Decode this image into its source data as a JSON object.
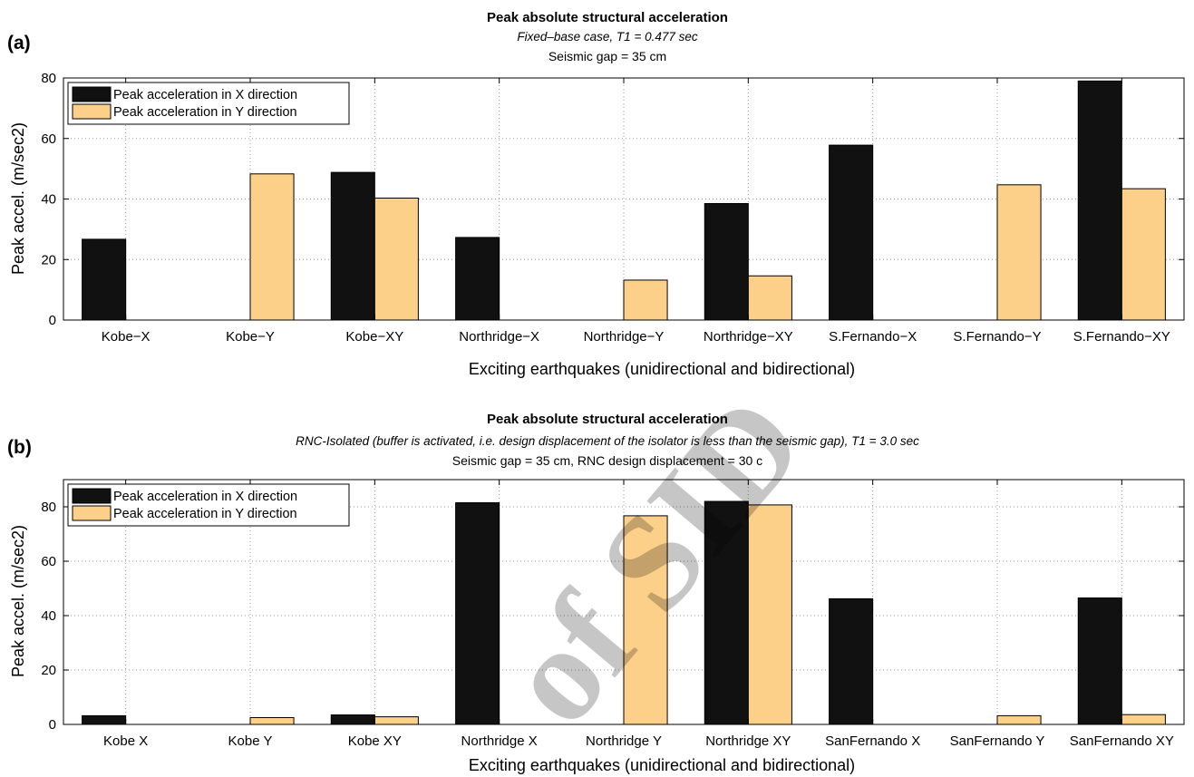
{
  "chart_data": [
    {
      "type": "bar",
      "panel_label": "(a)",
      "title": "Peak absolute structural acceleration",
      "subtitle": "Fixed–base case, T1 = 0.477 sec",
      "subtitle2": "Seismic gap = 35 cm",
      "xlabel": "Exciting earthquakes (unidirectional and bidirectional)",
      "ylabel": "Peak accel. (m/sec2)",
      "ylim": [
        0,
        80
      ],
      "yticks": [
        0,
        20,
        40,
        60,
        80
      ],
      "grid": true,
      "legend_position": "top-left",
      "categories": [
        "Kobe−X",
        "Kobe−Y",
        "Kobe−XY",
        "Northridge−X",
        "Northridge−Y",
        "Northridge−XY",
        "S.Fernando−X",
        "S.Fernando−Y",
        "S.Fernando−XY"
      ],
      "series": [
        {
          "name": "Peak acceleration in X direction",
          "color": "#111111",
          "values": [
            26.7,
            0,
            48.8,
            27.3,
            0,
            38.5,
            57.8,
            0,
            79.0
          ]
        },
        {
          "name": "Peak acceleration in Y direction",
          "color": "#fdd08a",
          "values": [
            0,
            48.3,
            40.3,
            0,
            13.2,
            14.6,
            0,
            44.7,
            43.4
          ]
        }
      ]
    },
    {
      "type": "bar",
      "panel_label": "(b)",
      "title": "Peak absolute structural acceleration",
      "subtitle": "RNC-Isolated (buffer is activated, i.e. design displacement of the isolator is less than the seismic gap), T1 = 3.0 sec",
      "subtitle2": "Seismic gap = 35 cm, RNC design displacement = 30 c",
      "xlabel": "Exciting earthquakes (unidirectional and bidirectional)",
      "ylabel": "Peak accel. (m/sec2)",
      "ylim": [
        0,
        90
      ],
      "yticks": [
        0,
        20,
        40,
        60,
        80
      ],
      "grid": true,
      "legend_position": "top-left",
      "categories": [
        "Kobe X",
        "Kobe Y",
        "Kobe XY",
        "Northridge X",
        "Northridge Y",
        "Northridge XY",
        "SanFernando X",
        "SanFernando Y",
        "SanFernando XY"
      ],
      "series": [
        {
          "name": "Peak acceleration in X direction",
          "color": "#111111",
          "values": [
            3.2,
            0,
            3.5,
            81.5,
            0,
            82.0,
            46.2,
            0,
            46.5
          ]
        },
        {
          "name": "Peak acceleration in Y direction",
          "color": "#fdd08a",
          "values": [
            0,
            2.5,
            2.8,
            0,
            76.7,
            80.7,
            0,
            3.2,
            3.6
          ]
        }
      ]
    }
  ],
  "watermark": "of SID"
}
